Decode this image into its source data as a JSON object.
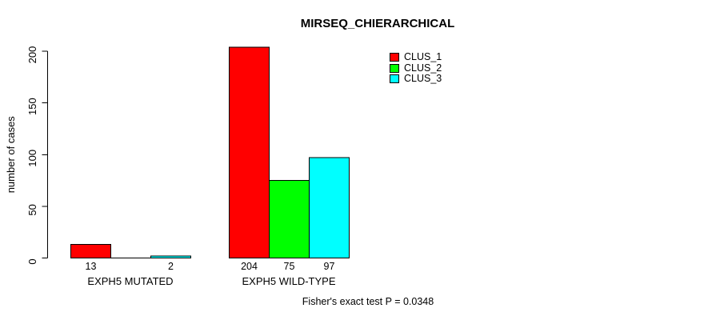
{
  "title": "MIRSEQ_CHIERARCHICAL",
  "footnote": "Fisher's exact test P = 0.0348",
  "legend": {
    "items": [
      {
        "label": "CLUS_1",
        "color": "#ff0000"
      },
      {
        "label": "CLUS_2",
        "color": "#00ff00"
      },
      {
        "label": "CLUS_3",
        "color": "#00ffff"
      }
    ]
  },
  "chart_data": {
    "type": "bar",
    "grouped": true,
    "title": "MIRSEQ_CHIERARCHICAL",
    "xlabel": "",
    "ylabel": "number of cases",
    "categories": [
      "EXPH5 MUTATED",
      "EXPH5 WILD-TYPE"
    ],
    "series": [
      {
        "name": "CLUS_1",
        "color": "#ff0000",
        "values": [
          13,
          204
        ]
      },
      {
        "name": "CLUS_2",
        "color": "#00ff00",
        "values": [
          0,
          75
        ]
      },
      {
        "name": "CLUS_3",
        "color": "#00ffff",
        "values": [
          2,
          97
        ]
      }
    ],
    "bar_labels": [
      [
        "13",
        "",
        "2"
      ],
      [
        "204",
        "75",
        "97"
      ]
    ],
    "ylim": [
      0,
      200
    ],
    "yticks": [
      0,
      50,
      100,
      150,
      200
    ],
    "grid": false,
    "legend_position": "top-right",
    "annotation": "Fisher's exact test P = 0.0348"
  }
}
